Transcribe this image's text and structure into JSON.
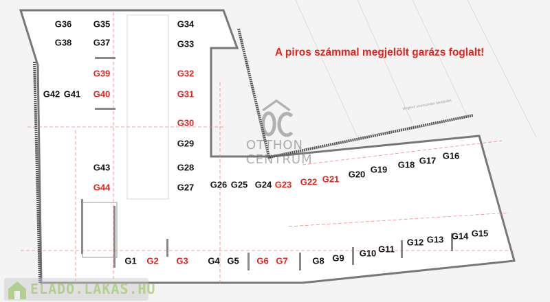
{
  "notice": "A piros számmal megjelölt garázs foglalt!",
  "neighbor_label": "Meglévő szomszédos lakóépület",
  "colors": {
    "occupied": "#e8211b",
    "free": "#111111"
  },
  "watermarks": {
    "otthon_centrum": [
      "OTTHON",
      "CENTRUM"
    ],
    "elado": "ELADO.LAKAS.HU"
  },
  "garages": [
    {
      "id": "G1",
      "occupied": false
    },
    {
      "id": "G2",
      "occupied": true
    },
    {
      "id": "G3",
      "occupied": true
    },
    {
      "id": "G4",
      "occupied": false
    },
    {
      "id": "G5",
      "occupied": false
    },
    {
      "id": "G6",
      "occupied": true
    },
    {
      "id": "G7",
      "occupied": true
    },
    {
      "id": "G8",
      "occupied": false
    },
    {
      "id": "G9",
      "occupied": false
    },
    {
      "id": "G10",
      "occupied": false
    },
    {
      "id": "G11",
      "occupied": false
    },
    {
      "id": "G12",
      "occupied": false
    },
    {
      "id": "G13",
      "occupied": false
    },
    {
      "id": "G14",
      "occupied": false
    },
    {
      "id": "G15",
      "occupied": false
    },
    {
      "id": "G16",
      "occupied": false
    },
    {
      "id": "G17",
      "occupied": false
    },
    {
      "id": "G18",
      "occupied": false
    },
    {
      "id": "G19",
      "occupied": false
    },
    {
      "id": "G20",
      "occupied": false
    },
    {
      "id": "G21",
      "occupied": true
    },
    {
      "id": "G22",
      "occupied": true
    },
    {
      "id": "G23",
      "occupied": true
    },
    {
      "id": "G24",
      "occupied": false
    },
    {
      "id": "G25",
      "occupied": false
    },
    {
      "id": "G26",
      "occupied": false
    },
    {
      "id": "G27",
      "occupied": false
    },
    {
      "id": "G28",
      "occupied": false
    },
    {
      "id": "G29",
      "occupied": false
    },
    {
      "id": "G30",
      "occupied": true
    },
    {
      "id": "G31",
      "occupied": true
    },
    {
      "id": "G32",
      "occupied": true
    },
    {
      "id": "G33",
      "occupied": false
    },
    {
      "id": "G34",
      "occupied": false
    },
    {
      "id": "G35",
      "occupied": false
    },
    {
      "id": "G36",
      "occupied": false
    },
    {
      "id": "G37",
      "occupied": false
    },
    {
      "id": "G38",
      "occupied": false
    },
    {
      "id": "G39",
      "occupied": true
    },
    {
      "id": "G40",
      "occupied": true
    },
    {
      "id": "G41",
      "occupied": false
    },
    {
      "id": "G42",
      "occupied": false
    },
    {
      "id": "G43",
      "occupied": false
    },
    {
      "id": "G44",
      "occupied": true
    }
  ]
}
